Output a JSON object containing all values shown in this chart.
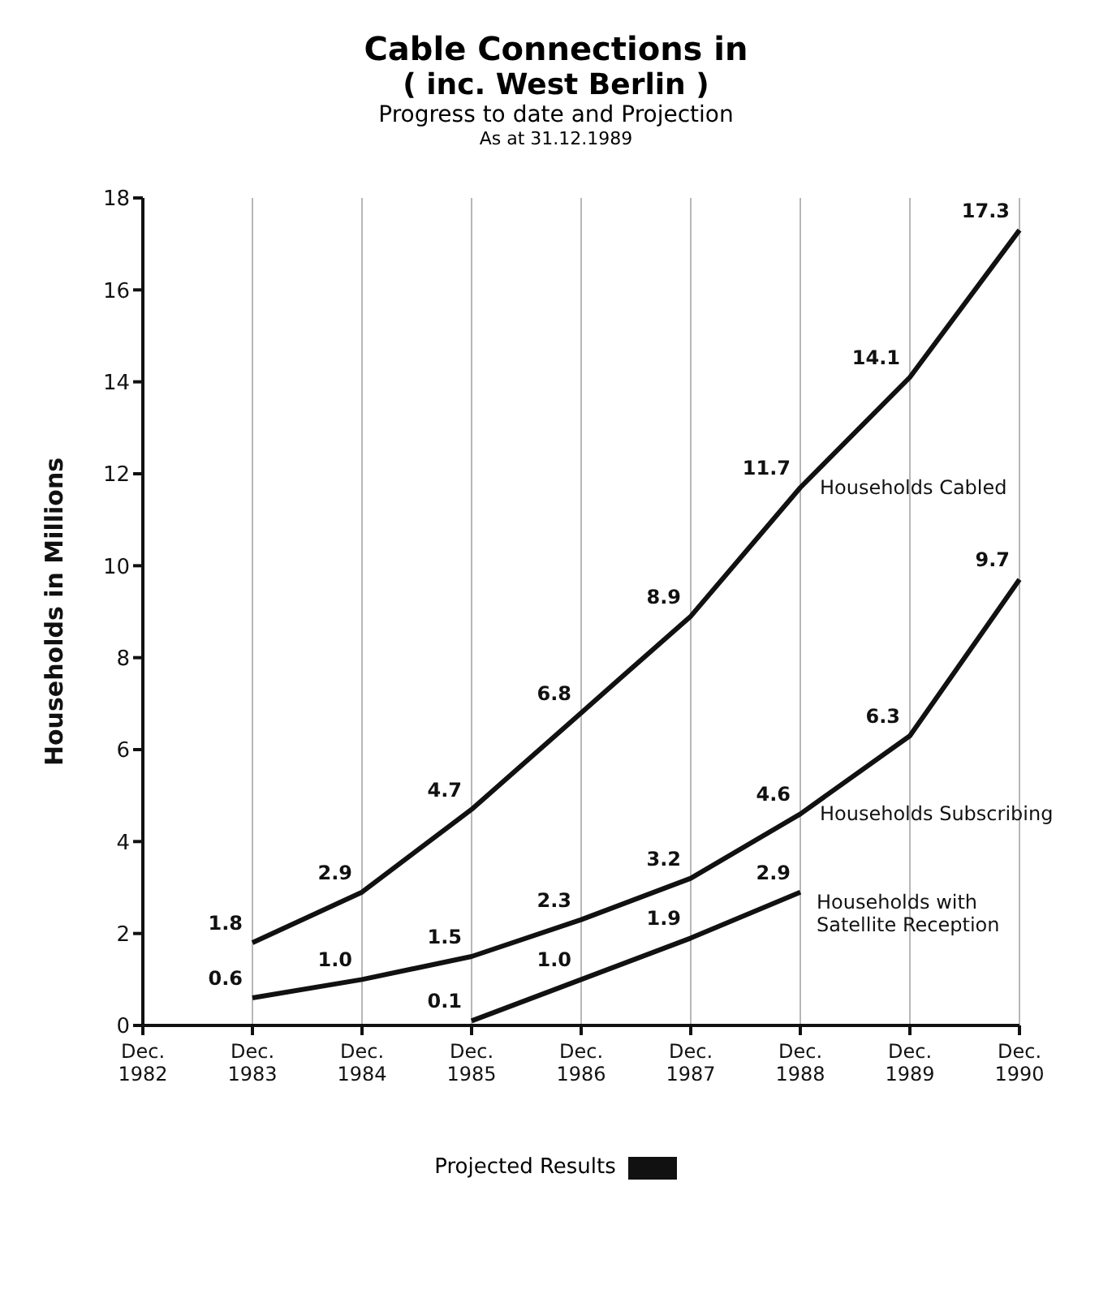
{
  "chart_data": {
    "type": "line",
    "title": "Cable Connections in",
    "subtitle": "( inc. West Berlin )",
    "annotations": [
      "Progress to date and Projection",
      "As at 31.12.1989",
      "Projected Results"
    ],
    "ylabel": "Households in Millions",
    "categories": [
      "Dec. 1982",
      "Dec. 1983",
      "Dec. 1984",
      "Dec. 1985",
      "Dec. 1986",
      "Dec. 1987",
      "Dec. 1988",
      "Dec. 1989",
      "Dec. 1990"
    ],
    "series": [
      {
        "name": "Households Cabled",
        "color": "#111111",
        "values": [
          null,
          1.8,
          2.9,
          4.7,
          6.8,
          8.9,
          11.7,
          14.1,
          17.3
        ],
        "value_labels": [
          null,
          "1.8",
          "2.9",
          "4.7",
          "6.8",
          "8.9",
          "11.7",
          "14.1",
          "17.3"
        ]
      },
      {
        "name": "Households Subscribing",
        "color": "#111111",
        "values": [
          null,
          0.6,
          1.0,
          1.5,
          2.3,
          3.2,
          4.6,
          6.3,
          9.7
        ],
        "value_labels": [
          null,
          "0.6",
          "1.0",
          "1.5",
          "2.3",
          "3.2",
          "4.6",
          "6.3",
          "9.7"
        ]
      },
      {
        "name": "Households with Satellite Reception",
        "color": "#111111",
        "values": [
          null,
          null,
          null,
          0.1,
          1.0,
          1.9,
          2.9,
          null,
          null
        ],
        "value_labels": [
          null,
          null,
          null,
          "0.1",
          "1.0",
          "1.9",
          "2.9",
          null,
          null
        ]
      }
    ],
    "ylim": [
      0,
      18
    ],
    "yticks": [
      0,
      2,
      4,
      6,
      8,
      10,
      12,
      14,
      16,
      18
    ],
    "grid": "x",
    "marker": "none",
    "line_style": "solid"
  }
}
